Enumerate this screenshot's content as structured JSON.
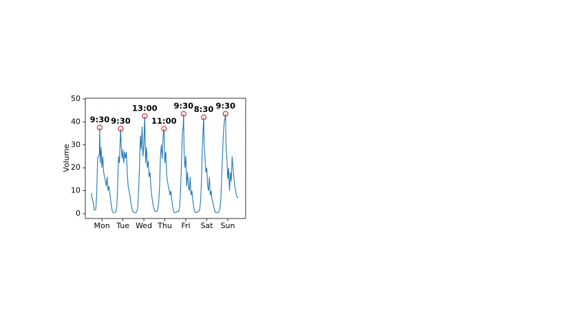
{
  "chart_data": {
    "type": "line",
    "y_label": "Volume",
    "x": [
      0,
      1,
      2,
      3,
      4,
      5,
      6,
      7,
      8,
      9,
      9.5,
      10,
      11,
      12,
      13,
      14,
      15,
      16,
      17,
      18,
      19,
      20,
      21,
      22,
      23,
      24,
      25,
      26,
      27,
      28,
      29,
      30,
      31,
      32,
      33,
      33.5,
      34,
      35,
      36,
      37,
      38,
      39,
      40,
      41,
      42,
      43,
      44,
      45,
      46,
      47,
      48,
      49,
      50,
      51,
      52,
      53,
      54,
      55,
      56,
      57,
      58,
      59,
      60,
      61,
      62,
      63,
      64,
      65,
      66,
      67,
      68,
      69,
      70,
      71,
      72,
      73,
      74,
      75,
      76,
      77,
      78,
      79,
      80,
      81,
      82,
      83,
      84,
      85,
      86,
      87,
      88,
      89,
      90,
      91,
      92,
      93,
      94,
      95,
      96,
      97,
      98,
      99,
      100,
      101,
      102,
      103,
      104,
      105,
      105.5,
      106,
      107,
      108,
      109,
      110,
      111,
      112,
      113,
      114,
      115,
      116,
      117,
      118,
      119,
      120,
      121,
      122,
      123,
      124,
      125,
      126,
      127,
      128,
      128.5,
      129,
      130,
      131,
      132,
      133,
      134,
      135,
      136,
      137,
      138,
      139,
      140,
      141,
      142,
      143,
      144,
      145,
      146,
      147,
      148,
      149,
      150,
      151,
      152,
      153,
      153.5,
      154,
      155,
      156,
      157,
      158,
      159,
      160,
      161,
      162,
      163,
      164,
      165,
      166,
      167,
      168
    ],
    "series": [
      {
        "color": "#1f77b4",
        "values": [
          9,
          6,
          5,
          2,
          1.5,
          2,
          8,
          24,
          25,
          26,
          37.5,
          22,
          29,
          20,
          25,
          18,
          16,
          14,
          12,
          16,
          10,
          12,
          9,
          6,
          3,
          1,
          0.5,
          0.5,
          0.5,
          1,
          3,
          12,
          25,
          22,
          33,
          37,
          30,
          24,
          28,
          22,
          27,
          24,
          27,
          18,
          12,
          10,
          8,
          5,
          3,
          1,
          1,
          0.5,
          0.5,
          0.5,
          1,
          3,
          10,
          20,
          34,
          28,
          38,
          25,
          30,
          42.5,
          22,
          29,
          20,
          23,
          16,
          18,
          12,
          8,
          5,
          3,
          1.5,
          1,
          1,
          1,
          2,
          5,
          12,
          25,
          30,
          24,
          34,
          37,
          22,
          27,
          18,
          14,
          12,
          10,
          8,
          10,
          6,
          3,
          1,
          0.5,
          0.5,
          0.5,
          1,
          1,
          1,
          3,
          10,
          22,
          35,
          38,
          43.5,
          28,
          20,
          25,
          12,
          18,
          12,
          10,
          16,
          8,
          10,
          6,
          3,
          1,
          0.5,
          0.5,
          0.5,
          1,
          1,
          2,
          6,
          15,
          30,
          38,
          42,
          30,
          24,
          18,
          20,
          12,
          10,
          16,
          8,
          10,
          6,
          5,
          3,
          1.5,
          0.5,
          0.5,
          0.5,
          0.5,
          1,
          2,
          6,
          15,
          25,
          35,
          40,
          42,
          43.5,
          30,
          24,
          15,
          20,
          10,
          18,
          14,
          25,
          20,
          16,
          12,
          10,
          8,
          7,
          7
        ]
      }
    ],
    "annotations": [
      "9:30",
      "9:30",
      "13:00",
      "11:00",
      "9:30",
      "8:30",
      "9:30"
    ],
    "annotation_color": "#d62728",
    "xlim": [
      -7,
      176.5
    ],
    "xticks": [
      {
        "value": 12,
        "label": "Mon"
      },
      {
        "value": 36,
        "label": "Tue"
      },
      {
        "value": 60,
        "label": "Wed"
      },
      {
        "value": 84,
        "label": "Thu"
      },
      {
        "value": 108,
        "label": "Fri"
      },
      {
        "value": 132,
        "label": "Sat"
      },
      {
        "value": 156,
        "label": "Sun"
      }
    ],
    "ylim": [
      -2.1,
      50.3
    ],
    "yticks": [
      0,
      10,
      20,
      30,
      40,
      50
    ]
  }
}
